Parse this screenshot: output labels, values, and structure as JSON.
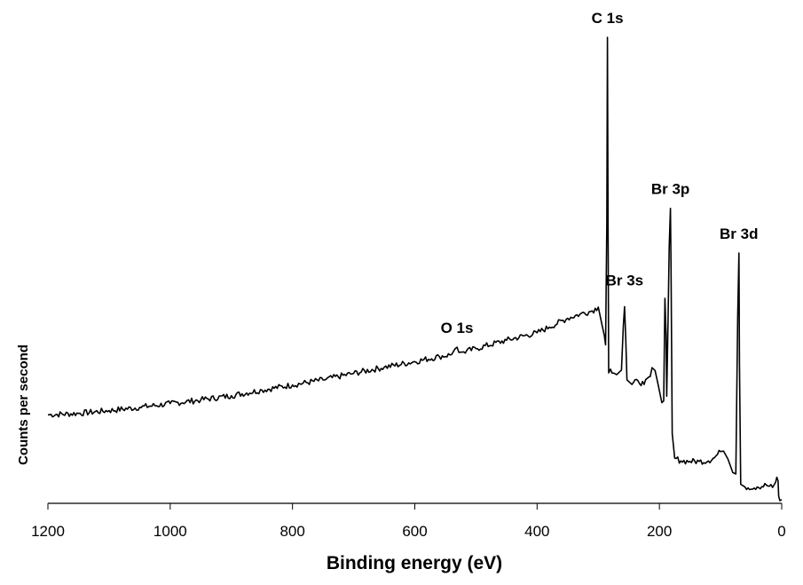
{
  "chart_data": {
    "type": "line",
    "title": "",
    "xlabel": "Binding energy (eV)",
    "ylabel": "Counts per second",
    "xlim": [
      1200,
      0
    ],
    "x_reversed": true,
    "ylim": [
      0,
      100
    ],
    "y_ticks_shown": false,
    "grid": false,
    "legend": "none",
    "xticks": [
      1200,
      1000,
      800,
      600,
      400,
      200,
      0
    ],
    "xtick_labels": [
      "1200",
      "1000",
      "800",
      "600",
      "400",
      "200",
      "0"
    ],
    "annotations": [
      {
        "text": "O 1s",
        "x": 531,
        "y": 33.5
      },
      {
        "text": "C 1s",
        "x": 285,
        "y": 100
      },
      {
        "text": "Br 3s",
        "x": 257,
        "y": 42.2
      },
      {
        "text": "Br 3p",
        "x": 182,
        "y": 63.3
      },
      {
        "text": "Br 3d",
        "x": 70,
        "y": 53.7
      }
    ],
    "series": [
      {
        "line_color": "#000000",
        "points": [
          [
            1200,
            19.0
          ],
          [
            1150,
            19.3
          ],
          [
            1100,
            19.9
          ],
          [
            1050,
            20.6
          ],
          [
            1000,
            21.4
          ],
          [
            950,
            22.2
          ],
          [
            900,
            23.1
          ],
          [
            850,
            24.3
          ],
          [
            800,
            25.4
          ],
          [
            750,
            26.5
          ],
          [
            700,
            27.9
          ],
          [
            650,
            29.2
          ],
          [
            600,
            30.4
          ],
          [
            560,
            31.5
          ],
          [
            540,
            31.9
          ],
          [
            534,
            33.2
          ],
          [
            531,
            33.5
          ],
          [
            528,
            32.4
          ],
          [
            520,
            32.5
          ],
          [
            500,
            33.2
          ],
          [
            450,
            35.0
          ],
          [
            400,
            36.6
          ],
          [
            380,
            37.8
          ],
          [
            350,
            39.7
          ],
          [
            330,
            40.6
          ],
          [
            310,
            41.3
          ],
          [
            300,
            42.1
          ],
          [
            295,
            39.0
          ],
          [
            290,
            36.0
          ],
          [
            288,
            34.0
          ],
          [
            286,
            60.0
          ],
          [
            285,
            100
          ],
          [
            284,
            60.0
          ],
          [
            283,
            28.0
          ],
          [
            280,
            28.8
          ],
          [
            270,
            27.6
          ],
          [
            262,
            28.6
          ],
          [
            259,
            38.0
          ],
          [
            257,
            42.2
          ],
          [
            255,
            35.0
          ],
          [
            253,
            26.5
          ],
          [
            245,
            25.5
          ],
          [
            235,
            26.3
          ],
          [
            225,
            25.5
          ],
          [
            215,
            27.2
          ],
          [
            212,
            29.1
          ],
          [
            207,
            28.5
          ],
          [
            202,
            25.4
          ],
          [
            196,
            21.6
          ],
          [
            193,
            22.0
          ],
          [
            191,
            44.0
          ],
          [
            189,
            36.0
          ],
          [
            188,
            23.0
          ],
          [
            186,
            38.0
          ],
          [
            184,
            55.0
          ],
          [
            182,
            63.3
          ],
          [
            181,
            50.0
          ],
          [
            179,
            15.0
          ],
          [
            175,
            9.7
          ],
          [
            165,
            9.1
          ],
          [
            150,
            9.0
          ],
          [
            135,
            9.0
          ],
          [
            120,
            9.1
          ],
          [
            110,
            9.8
          ],
          [
            100,
            11.1
          ],
          [
            95,
            11.2
          ],
          [
            88,
            9.5
          ],
          [
            80,
            6.6
          ],
          [
            75,
            6.3
          ],
          [
            72,
            40.0
          ],
          [
            70,
            53.7
          ],
          [
            69,
            30.0
          ],
          [
            67,
            4.1
          ],
          [
            60,
            3.5
          ],
          [
            40,
            3.5
          ],
          [
            25,
            3.9
          ],
          [
            15,
            3.4
          ],
          [
            10,
            4.5
          ],
          [
            8,
            5.6
          ],
          [
            6,
            4.8
          ],
          [
            5,
            1.5
          ],
          [
            3,
            0.6
          ],
          [
            0,
            0.8
          ]
        ]
      }
    ]
  }
}
